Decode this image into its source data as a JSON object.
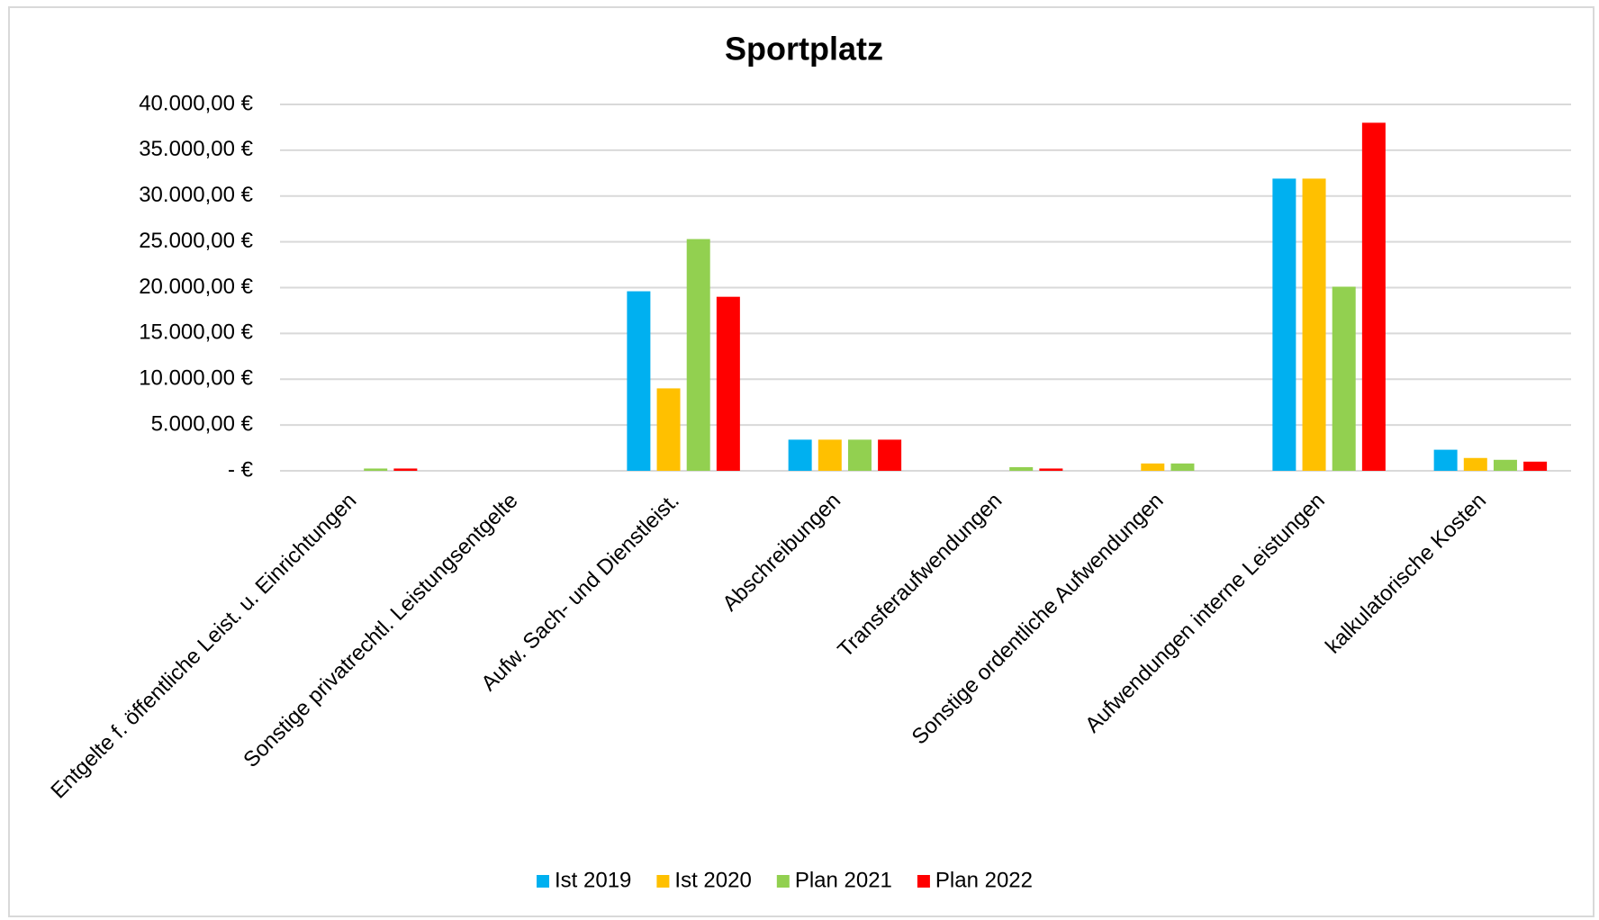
{
  "chart_data": {
    "type": "bar",
    "title": "Sportplatz",
    "categories": [
      "Entgelte f. öffentliche Leist. u. Einrichtungen",
      "Sonstige privatrechtl. Leistungsentgelte",
      "Aufw. Sach- und Dienstleist.",
      "Abschreibungen",
      "Transferaufwendungen",
      "Sonstige ordentliche Aufwendungen",
      "Aufwendungen interne Leistungen",
      "kalkulatorische Kosten"
    ],
    "series": [
      {
        "name": "Ist 2019",
        "color": "#00b0f0",
        "values": [
          0,
          0,
          19600,
          3400,
          0,
          0,
          31900,
          2300
        ]
      },
      {
        "name": "Ist 2020",
        "color": "#ffc000",
        "values": [
          0,
          0,
          9000,
          3400,
          0,
          800,
          31900,
          1400
        ]
      },
      {
        "name": "Plan 2021",
        "color": "#92d050",
        "values": [
          250,
          0,
          25300,
          3400,
          400,
          800,
          20100,
          1200
        ]
      },
      {
        "name": "Plan 2022",
        "color": "#ff0000",
        "values": [
          250,
          0,
          19000,
          3400,
          250,
          0,
          38000,
          1000
        ]
      }
    ],
    "ylim": [
      0,
      40000
    ],
    "yticks": [
      {
        "value": 0,
        "label": "-   €"
      },
      {
        "value": 5000,
        "label": "5.000,00 €"
      },
      {
        "value": 10000,
        "label": "10.000,00 €"
      },
      {
        "value": 15000,
        "label": "15.000,00 €"
      },
      {
        "value": 20000,
        "label": "20.000,00 €"
      },
      {
        "value": 25000,
        "label": "25.000,00 €"
      },
      {
        "value": 30000,
        "label": "30.000,00 €"
      },
      {
        "value": 35000,
        "label": "35.000,00 €"
      },
      {
        "value": 40000,
        "label": "40.000,00 €"
      }
    ],
    "grid": true,
    "legend": "bottom"
  }
}
